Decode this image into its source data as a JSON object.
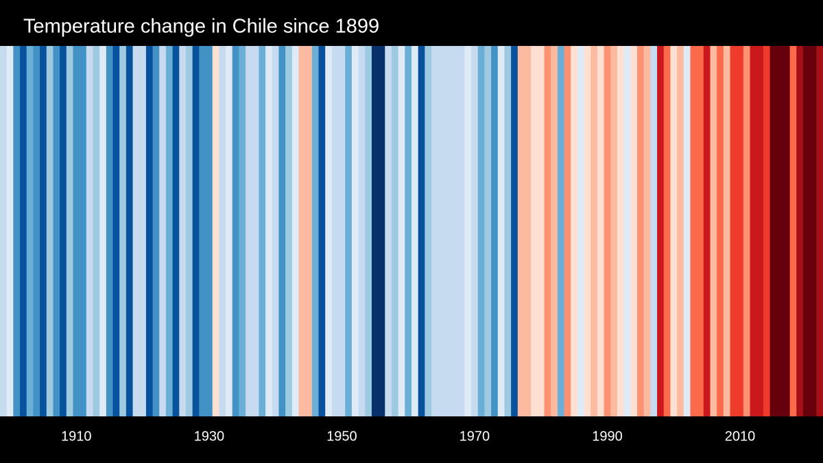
{
  "chart_data": {
    "type": "stripes",
    "title": "Temperature change in Chile since 1899",
    "x": [
      1899,
      1900,
      1901,
      1902,
      1903,
      1904,
      1905,
      1906,
      1907,
      1908,
      1909,
      1910,
      1911,
      1912,
      1913,
      1914,
      1915,
      1916,
      1917,
      1918,
      1919,
      1920,
      1921,
      1922,
      1923,
      1924,
      1925,
      1926,
      1927,
      1928,
      1929,
      1930,
      1931,
      1932,
      1933,
      1934,
      1935,
      1936,
      1937,
      1938,
      1939,
      1940,
      1941,
      1942,
      1943,
      1944,
      1945,
      1946,
      1947,
      1948,
      1949,
      1950,
      1951,
      1952,
      1953,
      1954,
      1955,
      1956,
      1957,
      1958,
      1959,
      1960,
      1961,
      1962,
      1963,
      1964,
      1965,
      1966,
      1967,
      1968,
      1969,
      1970,
      1971,
      1972,
      1973,
      1974,
      1975,
      1976,
      1977,
      1978,
      1979,
      1980,
      1981,
      1982,
      1983,
      1984,
      1985,
      1986,
      1987,
      1988,
      1989,
      1990,
      1991,
      1992,
      1993,
      1994,
      1995,
      1996,
      1997,
      1998,
      1999,
      2000,
      2001,
      2002,
      2003,
      2004,
      2005,
      2006,
      2007,
      2008,
      2009,
      2010,
      2011,
      2012,
      2013,
      2014,
      2015,
      2016,
      2017,
      2018,
      2019,
      2020,
      2021,
      2022
    ],
    "values": [
      -0.5,
      -0.4,
      -2.0,
      -2.5,
      -1.5,
      -2.0,
      -2.5,
      -1.2,
      -2.0,
      -2.5,
      -1.0,
      -2.0,
      -2.0,
      -0.6,
      -1.0,
      -0.4,
      -2.0,
      -2.5,
      -1.0,
      -2.8,
      -0.6,
      -0.6,
      -2.5,
      -2.0,
      -0.6,
      -1.5,
      -2.5,
      -0.8,
      -1.0,
      -2.5,
      -2.0,
      -2.0,
      0.1,
      -0.6,
      -0.3,
      -2.0,
      -1.5,
      -0.6,
      -0.6,
      -1.5,
      -0.3,
      -0.6,
      -2.0,
      -1.0,
      -0.1,
      0.4,
      0.4,
      -1.5,
      -2.5,
      -0.3,
      -0.8,
      -0.8,
      -1.5,
      -0.4,
      -0.8,
      -1.0,
      -3.0,
      -3.0,
      -0.6,
      -1.0,
      -0.3,
      -1.5,
      -0.1,
      -2.5,
      -1.0,
      -0.6,
      -0.6,
      -0.6,
      -0.6,
      -0.6,
      -0.3,
      -0.6,
      -1.5,
      -1.0,
      -2.0,
      -0.3,
      -1.0,
      -2.5,
      0.5,
      0.4,
      0.1,
      0.3,
      1.0,
      0.4,
      -1.5,
      0.8,
      0.2,
      -0.3,
      0.3,
      0.4,
      0.2,
      1.0,
      0.4,
      0.2,
      -0.3,
      0.2,
      1.0,
      0.6,
      -0.5,
      2.2,
      1.2,
      0.1,
      0.6,
      -0.3,
      1.5,
      1.5,
      2.0,
      0.5,
      1.2,
      0.6,
      1.6,
      1.6,
      1.0,
      2.0,
      2.2,
      1.6,
      3.0,
      3.0,
      3.0,
      1.5,
      2.6,
      3.0,
      3.0,
      2.6
    ],
    "xlim": [
      1898.5,
      2022.5
    ],
    "xticks": [
      1910,
      1930,
      1950,
      1970,
      1990,
      2010
    ],
    "colormap": "RdBu_r",
    "clim": [
      -3,
      3
    ]
  }
}
